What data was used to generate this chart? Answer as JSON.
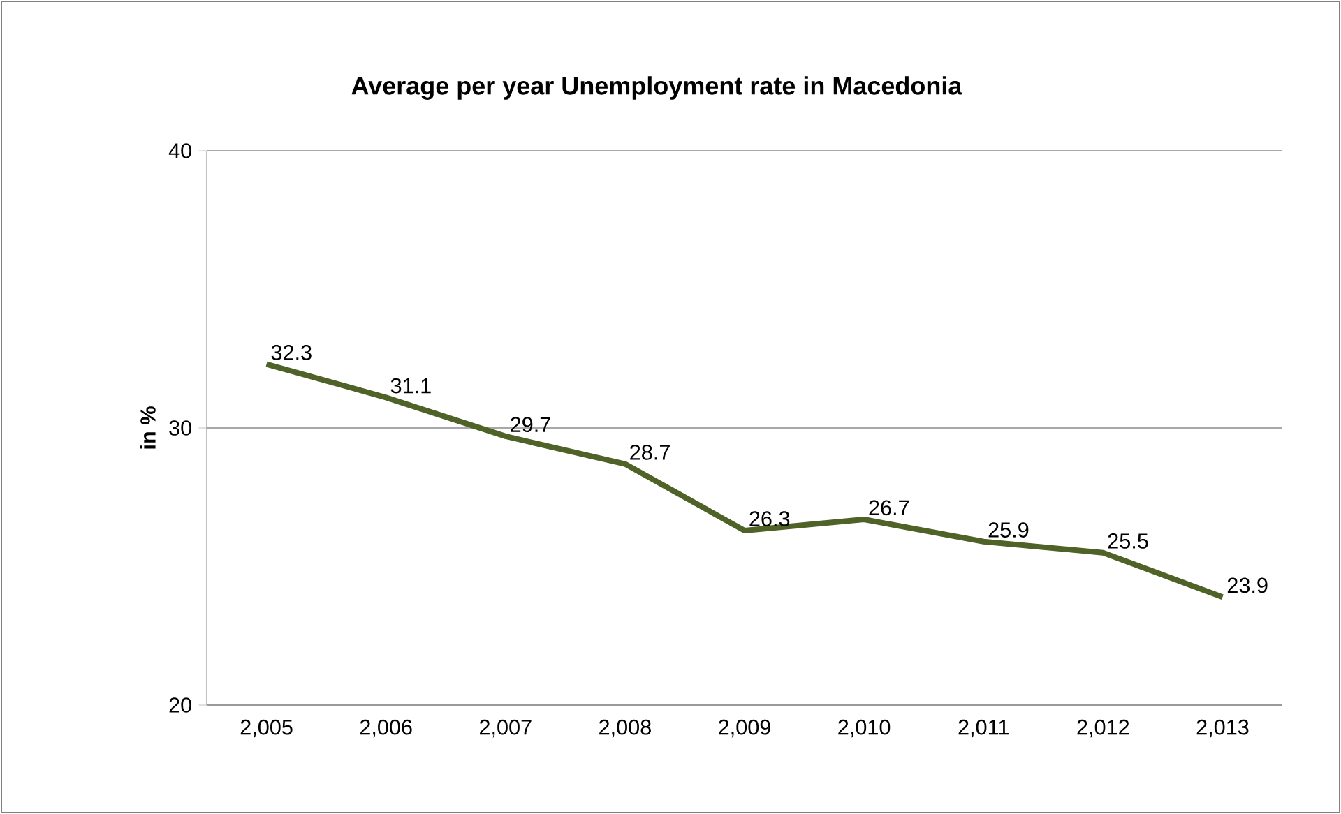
{
  "chart_data": {
    "type": "line",
    "title": "Average per year Unemployment rate in Macedonia",
    "ylabel": "in %",
    "categories": [
      "2,005",
      "2,006",
      "2,007",
      "2,008",
      "2,009",
      "2,010",
      "2,011",
      "2,012",
      "2,013"
    ],
    "series": [
      {
        "color": "#4f6228",
        "values": [
          32.3,
          31.1,
          29.7,
          28.7,
          26.3,
          26.7,
          25.9,
          25.5,
          23.9
        ]
      }
    ],
    "ylim": [
      20,
      40
    ],
    "yticks": [
      20,
      30,
      40
    ],
    "grid": "y",
    "data_labels": true,
    "marker": "none",
    "line_style": "solid"
  }
}
